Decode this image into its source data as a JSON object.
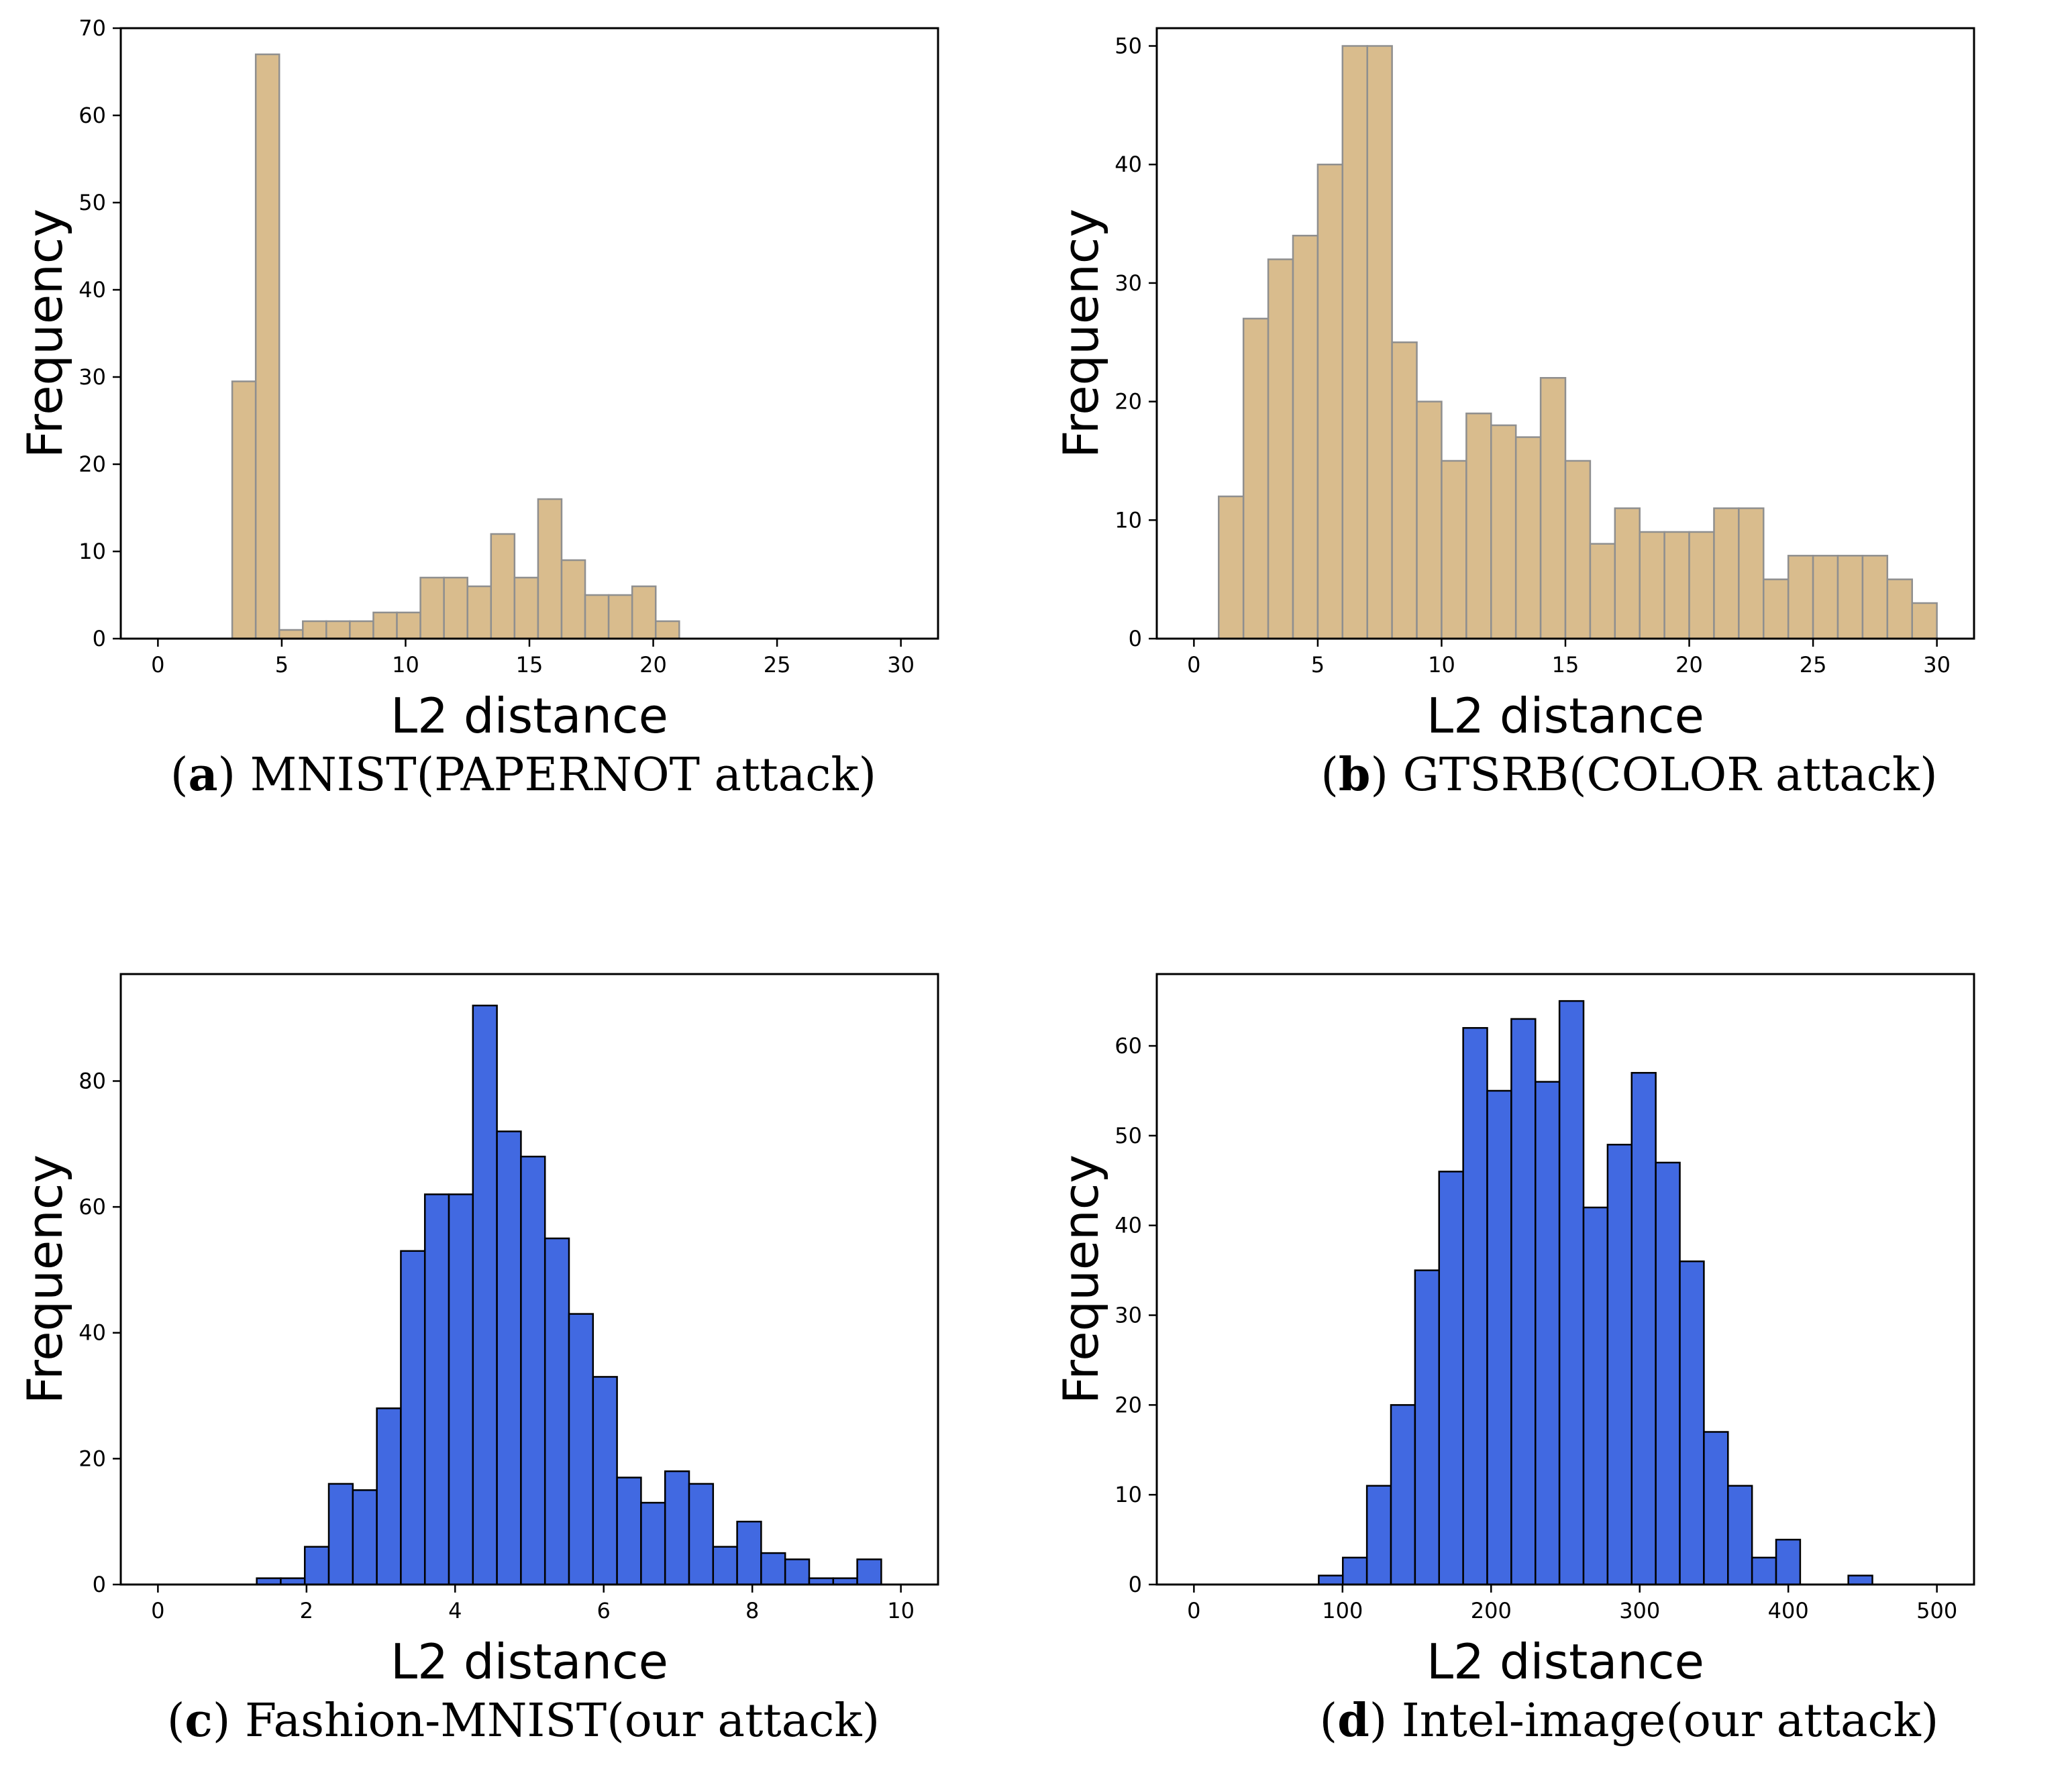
{
  "chart_data": [
    {
      "type": "bar",
      "ylabel": "Frequency",
      "xlabel": "L2 distance",
      "caption_letter": "a",
      "caption_text": " MNIST(PAPERNOT attack)",
      "xlim": [
        -1.5,
        31.5
      ],
      "ylim": [
        0,
        70
      ],
      "xticks": [
        0,
        5,
        10,
        15,
        20,
        25,
        30
      ],
      "yticks": [
        0,
        10,
        20,
        30,
        40,
        50,
        60,
        70
      ],
      "bin_start": 3.0,
      "bin_width": 0.95,
      "values": [
        29.5,
        67,
        1,
        2,
        2,
        2,
        3,
        3,
        7,
        7,
        6,
        12,
        7,
        16,
        9,
        5,
        5,
        6,
        2
      ],
      "fill": "#D9BC8D",
      "edge": "#8F8F8F"
    },
    {
      "type": "bar",
      "ylabel": "Frequency",
      "xlabel": "L2 distance",
      "caption_letter": "b",
      "caption_text": " GTSRB(COLOR attack)",
      "xlim": [
        -1.5,
        31.5
      ],
      "ylim": [
        0,
        51.5
      ],
      "xticks": [
        0,
        5,
        10,
        15,
        20,
        25,
        30
      ],
      "yticks": [
        0,
        10,
        20,
        30,
        40,
        50
      ],
      "bin_start": 1.0,
      "bin_width": 1.0,
      "values": [
        12,
        27,
        32,
        34,
        40,
        50,
        50,
        25,
        20,
        15,
        19,
        18,
        17,
        22,
        15,
        8,
        11,
        9,
        9,
        9,
        11,
        11,
        5,
        7,
        7,
        7,
        7,
        5,
        3
      ],
      "fill": "#D9BC8D",
      "edge": "#8F8F8F"
    },
    {
      "type": "bar",
      "ylabel": "Frequency",
      "xlabel": "L2 distance",
      "caption_letter": "c",
      "caption_text": " Fashion-MNIST(our attack)",
      "xlim": [
        -0.5,
        10.5
      ],
      "ylim": [
        0,
        97
      ],
      "xticks": [
        0,
        2,
        4,
        6,
        8,
        10
      ],
      "yticks": [
        0,
        20,
        40,
        60,
        80
      ],
      "bin_start": 1.33,
      "bin_width": 0.3233,
      "values": [
        1,
        1,
        6,
        16,
        15,
        28,
        53,
        62,
        62,
        92,
        72,
        68,
        55,
        43,
        33,
        17,
        13,
        18,
        16,
        6,
        10,
        5,
        4,
        1,
        1,
        4
      ],
      "fill": "#4169E1",
      "edge": "#000000"
    },
    {
      "type": "bar",
      "ylabel": "Frequency",
      "xlabel": "L2 distance",
      "caption_letter": "d",
      "caption_text": " Intel-image(our attack)",
      "xlim": [
        -25,
        525
      ],
      "ylim": [
        0,
        68
      ],
      "xticks": [
        0,
        100,
        200,
        300,
        400,
        500
      ],
      "yticks": [
        0,
        10,
        20,
        30,
        40,
        50,
        60
      ],
      "bin_start": 84,
      "bin_width": 16.2,
      "values": [
        1,
        3,
        11,
        20,
        35,
        46,
        62,
        55,
        63,
        56,
        65,
        42,
        49,
        57,
        47,
        36,
        17,
        11,
        3,
        5,
        0,
        0,
        1
      ],
      "fill": "#4169E1",
      "edge": "#000000"
    }
  ]
}
